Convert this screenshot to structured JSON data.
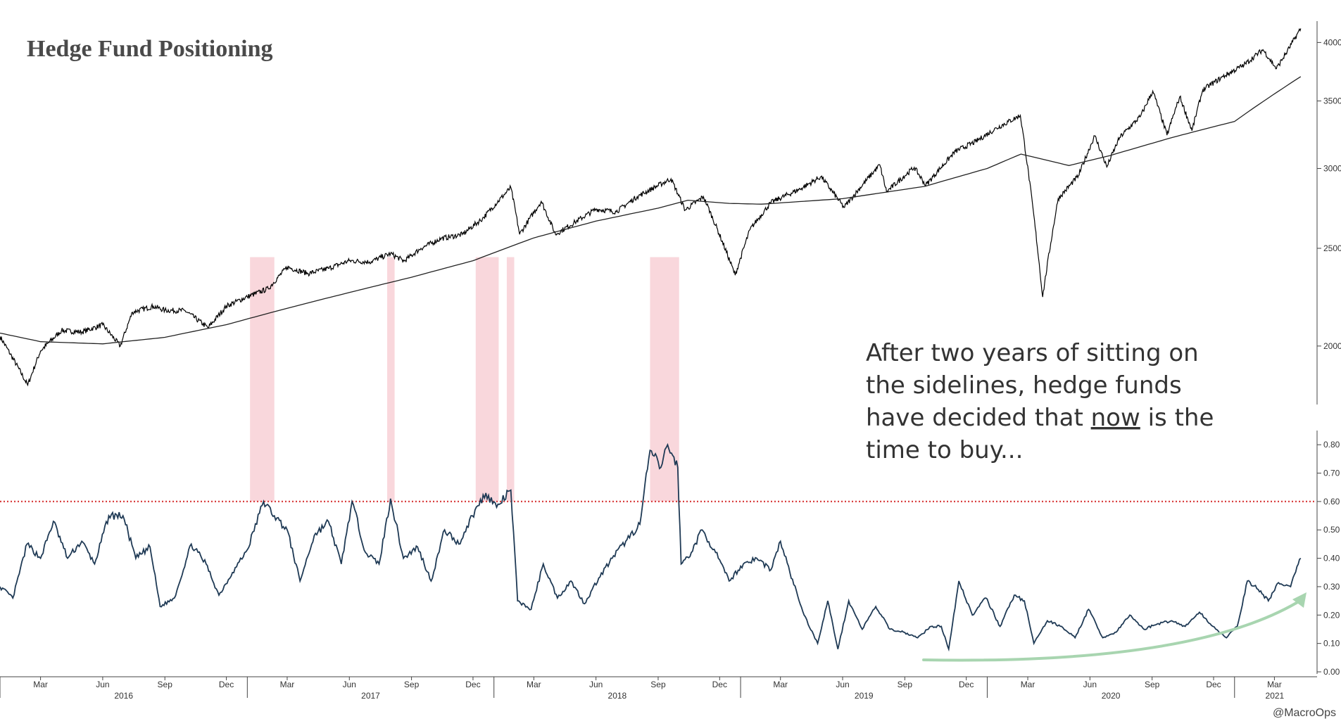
{
  "chart_data": {
    "type": "line",
    "title": "Hedge Fund Positioning",
    "credit": "@MacroOps",
    "x_axis": {
      "month_ticks": [
        "Mar",
        "Jun",
        "Sep",
        "Dec",
        "Mar",
        "Jun",
        "Sep",
        "Dec",
        "Mar",
        "Jun",
        "Sep",
        "Dec",
        "Mar",
        "Jun",
        "Sep",
        "Dec",
        "Mar",
        "Jun",
        "Sep",
        "Dec",
        "Mar"
      ],
      "year_labels": [
        "2016",
        "2017",
        "2018",
        "2019",
        "2020",
        "2021"
      ]
    },
    "upper_panel": {
      "scale": "log",
      "ylim": [
        1750,
        4200
      ],
      "yticks": [
        "4000",
        "3500",
        "3000",
        "2500",
        "2000"
      ],
      "series": [
        {
          "role": "price",
          "color": "#000000",
          "points": [
            [
              "2016-01-01",
              2044
            ],
            [
              "2016-02-11",
              1829
            ],
            [
              "2016-03-01",
              1978
            ],
            [
              "2016-04-01",
              2072
            ],
            [
              "2016-05-01",
              2065
            ],
            [
              "2016-06-01",
              2099
            ],
            [
              "2016-06-27",
              2000
            ],
            [
              "2016-07-15",
              2161
            ],
            [
              "2016-08-15",
              2190
            ],
            [
              "2016-09-01",
              2170
            ],
            [
              "2016-10-01",
              2168
            ],
            [
              "2016-11-04",
              2085
            ],
            [
              "2016-12-01",
              2191
            ],
            [
              "2017-01-01",
              2238
            ],
            [
              "2017-02-01",
              2280
            ],
            [
              "2017-03-01",
              2395
            ],
            [
              "2017-04-01",
              2360
            ],
            [
              "2017-05-01",
              2388
            ],
            [
              "2017-06-01",
              2430
            ],
            [
              "2017-07-01",
              2423
            ],
            [
              "2017-08-01",
              2470
            ],
            [
              "2017-08-21",
              2428
            ],
            [
              "2017-09-15",
              2500
            ],
            [
              "2017-10-15",
              2557
            ],
            [
              "2017-11-15",
              2580
            ],
            [
              "2017-12-15",
              2675
            ],
            [
              "2018-01-26",
              2872
            ],
            [
              "2018-02-08",
              2581
            ],
            [
              "2018-03-12",
              2783
            ],
            [
              "2018-04-02",
              2581
            ],
            [
              "2018-05-01",
              2654
            ],
            [
              "2018-06-01",
              2734
            ],
            [
              "2018-07-01",
              2718
            ],
            [
              "2018-08-01",
              2813
            ],
            [
              "2018-09-20",
              2930
            ],
            [
              "2018-10-11",
              2728
            ],
            [
              "2018-11-07",
              2813
            ],
            [
              "2018-12-24",
              2351
            ],
            [
              "2019-01-15",
              2610
            ],
            [
              "2019-02-15",
              2776
            ],
            [
              "2019-04-01",
              2867
            ],
            [
              "2019-04-30",
              2945
            ],
            [
              "2019-06-03",
              2744
            ],
            [
              "2019-07-26",
              3025
            ],
            [
              "2019-08-05",
              2844
            ],
            [
              "2019-09-15",
              3007
            ],
            [
              "2019-10-02",
              2887
            ],
            [
              "2019-11-15",
              3120
            ],
            [
              "2019-12-15",
              3190
            ],
            [
              "2020-01-15",
              3290
            ],
            [
              "2020-02-19",
              3386
            ],
            [
              "2020-03-23",
              2237
            ],
            [
              "2020-04-15",
              2800
            ],
            [
              "2020-05-15",
              2950
            ],
            [
              "2020-06-08",
              3232
            ],
            [
              "2020-06-26",
              3010
            ],
            [
              "2020-07-15",
              3220
            ],
            [
              "2020-08-15",
              3380
            ],
            [
              "2020-09-02",
              3580
            ],
            [
              "2020-09-23",
              3237
            ],
            [
              "2020-10-12",
              3534
            ],
            [
              "2020-10-30",
              3270
            ],
            [
              "2020-11-15",
              3590
            ],
            [
              "2020-12-15",
              3700
            ],
            [
              "2021-01-15",
              3800
            ],
            [
              "2021-02-12",
              3935
            ],
            [
              "2021-03-04",
              3768
            ],
            [
              "2021-03-20",
              3920
            ],
            [
              "2021-04-09",
              4130
            ]
          ]
        },
        {
          "role": "moving-average",
          "color": "#222222",
          "points": [
            [
              "2016-01-01",
              2060
            ],
            [
              "2016-03-01",
              2020
            ],
            [
              "2016-06-01",
              2010
            ],
            [
              "2016-09-01",
              2040
            ],
            [
              "2016-12-01",
              2100
            ],
            [
              "2017-03-01",
              2180
            ],
            [
              "2017-06-01",
              2260
            ],
            [
              "2017-09-01",
              2340
            ],
            [
              "2017-12-01",
              2430
            ],
            [
              "2018-03-01",
              2560
            ],
            [
              "2018-06-01",
              2660
            ],
            [
              "2018-09-01",
              2740
            ],
            [
              "2018-10-15",
              2790
            ],
            [
              "2018-12-15",
              2770
            ],
            [
              "2019-02-01",
              2765
            ],
            [
              "2019-06-01",
              2800
            ],
            [
              "2019-10-01",
              2880
            ],
            [
              "2020-01-01",
              3000
            ],
            [
              "2020-02-20",
              3100
            ],
            [
              "2020-05-01",
              3020
            ],
            [
              "2020-07-01",
              3090
            ],
            [
              "2020-10-01",
              3220
            ],
            [
              "2021-01-01",
              3340
            ],
            [
              "2021-04-09",
              3700
            ]
          ]
        }
      ]
    },
    "lower_panel": {
      "ylim": [
        0,
        0.85
      ],
      "yticks": [
        "0.80",
        "0.70",
        "0.60",
        "0.50",
        "0.40",
        "0.30",
        "0.20",
        "0.10",
        "0.00"
      ],
      "threshold": 0.6,
      "threshold_color": "#d94040",
      "series": [
        {
          "role": "positioning",
          "color": "#1f3a55",
          "points": [
            [
              "2016-01-01",
              0.3
            ],
            [
              "2016-01-20",
              0.26
            ],
            [
              "2016-02-10",
              0.45
            ],
            [
              "2016-03-01",
              0.4
            ],
            [
              "2016-03-20",
              0.53
            ],
            [
              "2016-04-10",
              0.4
            ],
            [
              "2016-05-01",
              0.46
            ],
            [
              "2016-05-20",
              0.38
            ],
            [
              "2016-06-10",
              0.55
            ],
            [
              "2016-07-01",
              0.55
            ],
            [
              "2016-07-20",
              0.4
            ],
            [
              "2016-08-10",
              0.44
            ],
            [
              "2016-08-25",
              0.23
            ],
            [
              "2016-09-15",
              0.26
            ],
            [
              "2016-10-10",
              0.45
            ],
            [
              "2016-11-01",
              0.38
            ],
            [
              "2016-11-20",
              0.27
            ],
            [
              "2016-12-10",
              0.35
            ],
            [
              "2017-01-01",
              0.43
            ],
            [
              "2017-01-25",
              0.6
            ],
            [
              "2017-02-10",
              0.55
            ],
            [
              "2017-03-01",
              0.5
            ],
            [
              "2017-03-20",
              0.32
            ],
            [
              "2017-04-10",
              0.48
            ],
            [
              "2017-05-01",
              0.53
            ],
            [
              "2017-05-20",
              0.38
            ],
            [
              "2017-06-05",
              0.6
            ],
            [
              "2017-06-25",
              0.42
            ],
            [
              "2017-07-15",
              0.38
            ],
            [
              "2017-08-01",
              0.61
            ],
            [
              "2017-08-20",
              0.4
            ],
            [
              "2017-09-10",
              0.44
            ],
            [
              "2017-09-30",
              0.32
            ],
            [
              "2017-10-20",
              0.5
            ],
            [
              "2017-11-10",
              0.45
            ],
            [
              "2017-11-30",
              0.55
            ],
            [
              "2017-12-20",
              0.63
            ],
            [
              "2018-01-05",
              0.58
            ],
            [
              "2018-01-26",
              0.64
            ],
            [
              "2018-02-05",
              0.25
            ],
            [
              "2018-02-25",
              0.22
            ],
            [
              "2018-03-15",
              0.38
            ],
            [
              "2018-04-05",
              0.26
            ],
            [
              "2018-04-25",
              0.32
            ],
            [
              "2018-05-15",
              0.24
            ],
            [
              "2018-06-05",
              0.33
            ],
            [
              "2018-06-25",
              0.4
            ],
            [
              "2018-07-15",
              0.46
            ],
            [
              "2018-08-05",
              0.52
            ],
            [
              "2018-08-20",
              0.78
            ],
            [
              "2018-09-05",
              0.72
            ],
            [
              "2018-09-15",
              0.8
            ],
            [
              "2018-09-30",
              0.72
            ],
            [
              "2018-10-05",
              0.38
            ],
            [
              "2018-10-20",
              0.42
            ],
            [
              "2018-11-05",
              0.5
            ],
            [
              "2018-11-25",
              0.42
            ],
            [
              "2018-12-15",
              0.32
            ],
            [
              "2019-01-05",
              0.38
            ],
            [
              "2019-01-25",
              0.4
            ],
            [
              "2019-02-15",
              0.36
            ],
            [
              "2019-03-01",
              0.46
            ],
            [
              "2019-03-15",
              0.35
            ],
            [
              "2019-04-05",
              0.2
            ],
            [
              "2019-04-25",
              0.1
            ],
            [
              "2019-05-10",
              0.25
            ],
            [
              "2019-05-25",
              0.08
            ],
            [
              "2019-06-10",
              0.25
            ],
            [
              "2019-06-30",
              0.15
            ],
            [
              "2019-07-20",
              0.23
            ],
            [
              "2019-08-10",
              0.15
            ],
            [
              "2019-08-30",
              0.14
            ],
            [
              "2019-09-20",
              0.12
            ],
            [
              "2019-10-10",
              0.16
            ],
            [
              "2019-10-25",
              0.16
            ],
            [
              "2019-11-05",
              0.08
            ],
            [
              "2019-11-20",
              0.32
            ],
            [
              "2019-12-10",
              0.2
            ],
            [
              "2019-12-30",
              0.26
            ],
            [
              "2020-01-20",
              0.16
            ],
            [
              "2020-02-10",
              0.27
            ],
            [
              "2020-02-25",
              0.25
            ],
            [
              "2020-03-10",
              0.1
            ],
            [
              "2020-03-30",
              0.18
            ],
            [
              "2020-04-20",
              0.16
            ],
            [
              "2020-05-10",
              0.12
            ],
            [
              "2020-05-30",
              0.22
            ],
            [
              "2020-06-20",
              0.12
            ],
            [
              "2020-07-10",
              0.14
            ],
            [
              "2020-07-30",
              0.2
            ],
            [
              "2020-08-20",
              0.15
            ],
            [
              "2020-09-10",
              0.17
            ],
            [
              "2020-09-30",
              0.18
            ],
            [
              "2020-10-20",
              0.16
            ],
            [
              "2020-11-10",
              0.21
            ],
            [
              "2020-11-30",
              0.16
            ],
            [
              "2020-12-20",
              0.12
            ],
            [
              "2021-01-05",
              0.16
            ],
            [
              "2021-01-20",
              0.32
            ],
            [
              "2021-02-05",
              0.29
            ],
            [
              "2021-02-20",
              0.25
            ],
            [
              "2021-03-05",
              0.31
            ],
            [
              "2021-03-25",
              0.3
            ],
            [
              "2021-04-09",
              0.4
            ]
          ]
        }
      ]
    },
    "highlight_periods": [
      [
        "2017-01-05",
        "2017-02-10"
      ],
      [
        "2017-07-27",
        "2017-08-07"
      ],
      [
        "2017-12-05",
        "2018-01-08"
      ],
      [
        "2018-01-20",
        "2018-01-31"
      ],
      [
        "2018-08-20",
        "2018-10-02"
      ]
    ],
    "highlight_color": "#f9d7dc",
    "annotation": {
      "lines": [
        [
          "After two years of sitting on"
        ],
        [
          "the sidelines, hedge funds"
        ],
        [
          "have decided that ",
          "now",
          " is the"
        ],
        [
          "time to buy..."
        ]
      ],
      "arrow_color": "#a8d5b0"
    }
  }
}
